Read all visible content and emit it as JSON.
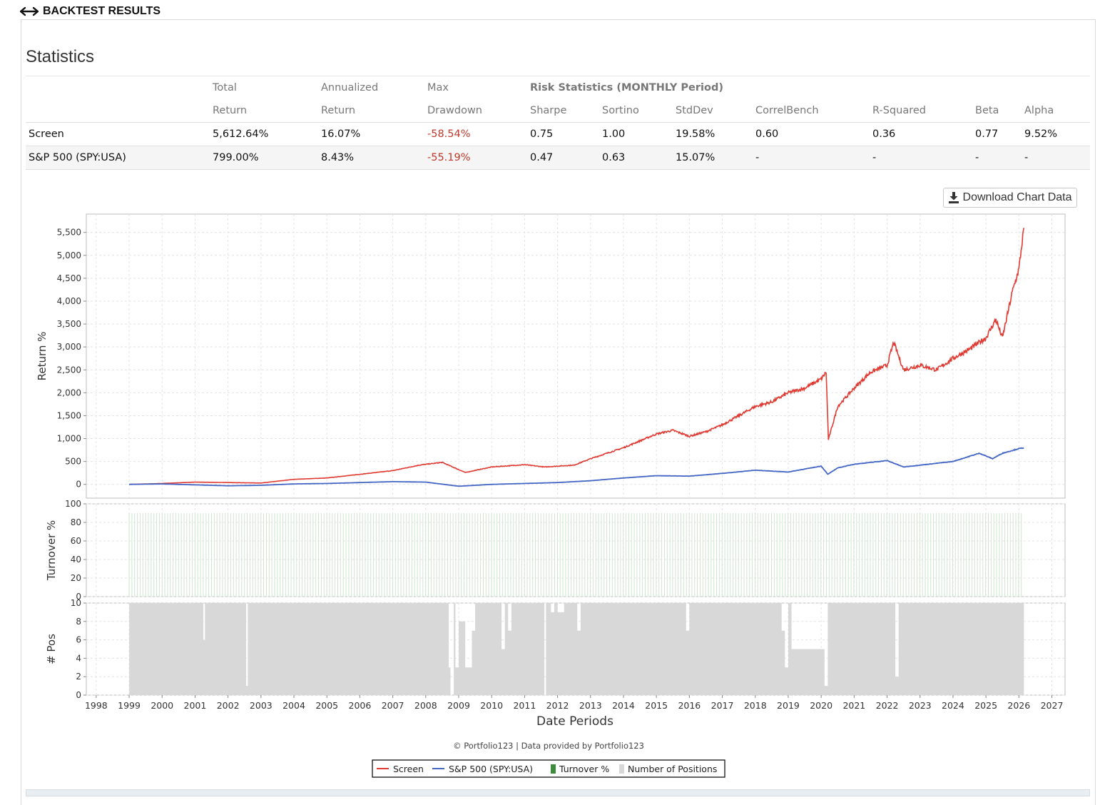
{
  "header": {
    "title": "BACKTEST RESULTS",
    "icon": "expand-arrows-icon"
  },
  "stats": {
    "title": "Statistics",
    "header_row1": [
      "",
      "Total",
      "Annualized",
      "Max",
      "Risk Statistics (MONTHLY Period)",
      "",
      "",
      "",
      "",
      "",
      ""
    ],
    "header_row2": [
      "",
      "Return",
      "Return",
      "Drawdown",
      "Sharpe",
      "Sortino",
      "StdDev",
      "CorrelBench",
      "R-Squared",
      "Beta",
      "Alpha"
    ],
    "rows": [
      [
        "Screen",
        "5,612.64%",
        "16.07%",
        "-58.54%",
        "0.75",
        "1.00",
        "19.58%",
        "0.60",
        "0.36",
        "0.77",
        "9.52%"
      ],
      [
        "S&P 500 (SPY:USA)",
        "799.00%",
        "8.43%",
        "-55.19%",
        "0.47",
        "0.63",
        "15.07%",
        "-",
        "-",
        "-",
        "-"
      ]
    ]
  },
  "download_button": {
    "label": "Download Chart Data",
    "icon": "download-icon"
  },
  "credit": "© Portfolio123 | Data provided by Portfolio123",
  "colors": {
    "screen": "#e03a32",
    "benchmark": "#4466c4",
    "turnover": "#3c8c3c",
    "positions": "#d8d8d8"
  },
  "chart_data": [
    {
      "type": "line",
      "ylabel": "Return %",
      "ylim": [
        -300,
        5900
      ],
      "yticks": [
        0,
        500,
        1000,
        1500,
        2000,
        2500,
        3000,
        3500,
        4000,
        4500,
        5000,
        5500
      ],
      "ytick_labels": [
        "0",
        "500",
        "1,000",
        "1,500",
        "2,000",
        "2,500",
        "3,000",
        "3,500",
        "4,000",
        "4,500",
        "5,000",
        "5,500"
      ],
      "grid": true,
      "series": [
        {
          "name": "Screen",
          "x": [
            1999.0,
            2000.0,
            2001.0,
            2002.0,
            2003.0,
            2004.0,
            2005.0,
            2006.0,
            2007.0,
            2007.8,
            2008.5,
            2009.2,
            2010.0,
            2011.0,
            2011.6,
            2012.5,
            2013.0,
            2014.0,
            2015.0,
            2015.5,
            2016.0,
            2016.5,
            2017.0,
            2017.5,
            2018.0,
            2018.5,
            2019.0,
            2019.5,
            2020.0,
            2020.15,
            2020.22,
            2020.5,
            2021.0,
            2021.5,
            2022.0,
            2022.2,
            2022.5,
            2023.0,
            2023.5,
            2024.0,
            2024.5,
            2025.0,
            2025.3,
            2025.5,
            2025.8,
            2026.0,
            2026.15
          ],
          "y": [
            0,
            20,
            50,
            40,
            30,
            110,
            140,
            220,
            300,
            420,
            480,
            260,
            380,
            430,
            380,
            420,
            560,
            800,
            1100,
            1180,
            1050,
            1150,
            1300,
            1500,
            1700,
            1800,
            2000,
            2100,
            2300,
            2450,
            980,
            1700,
            2100,
            2450,
            2600,
            3100,
            2500,
            2600,
            2500,
            2750,
            2950,
            3200,
            3600,
            3200,
            4200,
            4700,
            5600
          ]
        },
        {
          "name": "S&P 500 (SPY:USA)",
          "x": [
            1999.0,
            2000.0,
            2001.0,
            2002.0,
            2003.0,
            2004.0,
            2005.0,
            2006.0,
            2007.0,
            2008.0,
            2009.0,
            2010.0,
            2011.0,
            2012.0,
            2013.0,
            2014.0,
            2015.0,
            2016.0,
            2017.0,
            2018.0,
            2019.0,
            2020.0,
            2020.2,
            2020.5,
            2021.0,
            2022.0,
            2022.5,
            2023.0,
            2024.0,
            2024.8,
            2025.2,
            2025.5,
            2026.0,
            2026.15
          ],
          "y": [
            0,
            10,
            -10,
            -30,
            -20,
            10,
            20,
            40,
            60,
            50,
            -40,
            0,
            20,
            40,
            80,
            140,
            190,
            180,
            240,
            310,
            270,
            400,
            220,
            360,
            440,
            520,
            380,
            420,
            500,
            680,
            560,
            680,
            780,
            799
          ]
        }
      ]
    },
    {
      "type": "bar",
      "ylabel": "Turnover %",
      "ylim": [
        0,
        100
      ],
      "yticks": [
        0,
        20,
        40,
        60,
        80,
        100
      ],
      "series": [
        {
          "name": "Turnover %",
          "value": 90,
          "x_start": 1999.0,
          "x_end": 2026.15,
          "step_years": 0.0833
        }
      ]
    },
    {
      "type": "area",
      "ylabel": "# Pos",
      "ylim": [
        0,
        10
      ],
      "yticks": [
        0,
        2,
        4,
        6,
        8,
        10
      ],
      "series": [
        {
          "name": "Number of Positions",
          "x": [
            1999.0,
            2001.25,
            2001.3,
            2002.55,
            2002.6,
            2008.7,
            2008.75,
            2008.85,
            2008.9,
            2009.0,
            2009.2,
            2009.4,
            2009.5,
            2010.3,
            2010.4,
            2010.5,
            2010.6,
            2011.6,
            2011.65,
            2011.8,
            2011.9,
            2012.0,
            2012.2,
            2012.6,
            2012.7,
            2015.9,
            2016.0,
            2018.8,
            2018.9,
            2019.0,
            2019.1,
            2020.1,
            2020.2,
            2022.25,
            2022.35,
            2022.5,
            2026.15
          ],
          "y": [
            10,
            6,
            10,
            1,
            10,
            3,
            0,
            10,
            3,
            8,
            3,
            7,
            10,
            5,
            10,
            7,
            10,
            0,
            10,
            9,
            10,
            9,
            10,
            7,
            10,
            7,
            10,
            7,
            3,
            10,
            5,
            1,
            10,
            2,
            10,
            10,
            10
          ]
        }
      ]
    }
  ],
  "x_axis": {
    "label": "Date Periods",
    "ticks": [
      "1998",
      "1999",
      "2000",
      "2001",
      "2002",
      "2003",
      "2004",
      "2005",
      "2006",
      "2007",
      "2008",
      "2009",
      "2010",
      "2011",
      "2012",
      "2013",
      "2014",
      "2015",
      "2016",
      "2017",
      "2018",
      "2019",
      "2020",
      "2021",
      "2022",
      "2023",
      "2024",
      "2025",
      "2026",
      "2027"
    ]
  },
  "legend": {
    "items": [
      {
        "label": "Screen",
        "kind": "line",
        "color": "#e03a32"
      },
      {
        "label": "S&P 500 (SPY:USA)",
        "kind": "line",
        "color": "#4466c4"
      },
      {
        "label": "Turnover %",
        "kind": "box",
        "color": "#3c8c3c"
      },
      {
        "label": "Number of Positions",
        "kind": "box",
        "color": "#d8d8d8"
      }
    ],
    "placement": "bottom-center"
  }
}
